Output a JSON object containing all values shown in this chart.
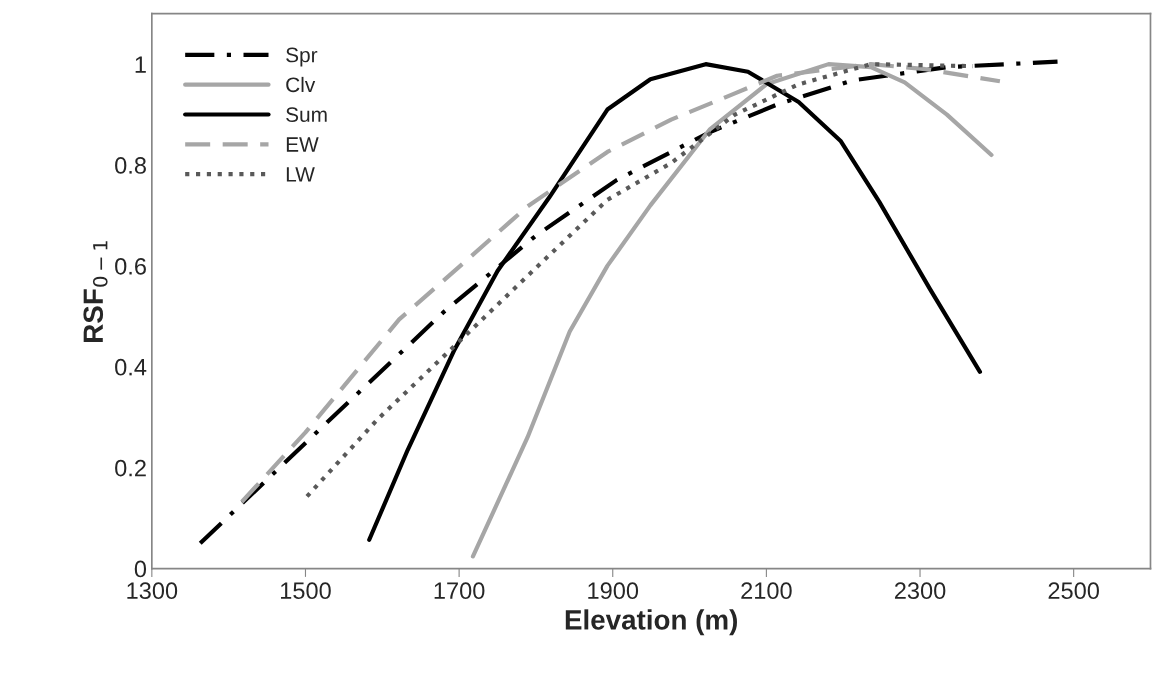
{
  "chart_data": {
    "type": "line",
    "xlabel": "Elevation (m)",
    "ylabel": "RSF$_{0−1}$",
    "xlim": [
      1300,
      2600
    ],
    "xticks": [
      1300,
      1500,
      1700,
      1900,
      2100,
      2300,
      2500
    ],
    "ylim": [
      0,
      1.1
    ],
    "yticks": [
      0,
      {
        "value": 0.2,
        "label": "0.2"
      },
      {
        "value": 0.4,
        "label": "0.4"
      },
      {
        "value": 0.6,
        "label": "0.6"
      },
      {
        "value": 0.8,
        "label": "0.8"
      },
      1
    ],
    "grid": false,
    "legend": "top left",
    "marker": "none",
    "series": [
      {
        "name": "Spr",
        "color": "#000000",
        "line_style": "dashdot",
        "x": [
          1363,
          1511,
          1681,
          1800,
          1905,
          2026,
          2114,
          2213,
          2335,
          2479
        ],
        "values": [
          0.05,
          0.265,
          0.51,
          0.66,
          0.77,
          0.865,
          0.92,
          0.968,
          0.994,
          1.005
        ]
      },
      {
        "name": "Clv",
        "color": "#a6a6a6",
        "line_style": "solid",
        "x": [
          1718,
          1789,
          1844,
          1893,
          1949,
          2026,
          2100,
          2181,
          2236,
          2280,
          2335,
          2393
        ],
        "values": [
          0.024,
          0.26,
          0.47,
          0.6,
          0.72,
          0.87,
          0.96,
          1.0,
          0.994,
          0.964,
          0.9,
          0.82
        ]
      },
      {
        "name": "Sum",
        "color": "#000000",
        "line_style": "solid",
        "x": [
          1583,
          1633,
          1694,
          1750,
          1817,
          1893,
          1949,
          2021,
          2076,
          2142,
          2197,
          2247,
          2313,
          2378
        ],
        "values": [
          0.057,
          0.235,
          0.434,
          0.59,
          0.735,
          0.91,
          0.97,
          1.0,
          0.985,
          0.925,
          0.847,
          0.727,
          0.554,
          0.39
        ]
      },
      {
        "name": "EW",
        "color": "#a6a6a6",
        "line_style": "dashed",
        "x": [
          1417,
          1500,
          1622,
          1706,
          1789,
          1893,
          1976,
          2059,
          2114,
          2236,
          2307,
          2404
        ],
        "values": [
          0.132,
          0.27,
          0.494,
          0.606,
          0.718,
          0.826,
          0.89,
          0.942,
          0.977,
          1.0,
          0.99,
          0.966
        ]
      },
      {
        "name": "LW",
        "color": "#595959",
        "line_style": "dotted",
        "x": [
          1502,
          1594,
          1689,
          1789,
          1893,
          1976,
          2059,
          2142,
          2236,
          2369
        ],
        "values": [
          0.143,
          0.296,
          0.434,
          0.58,
          0.731,
          0.804,
          0.9,
          0.96,
          1.0,
          0.996
        ]
      }
    ]
  }
}
